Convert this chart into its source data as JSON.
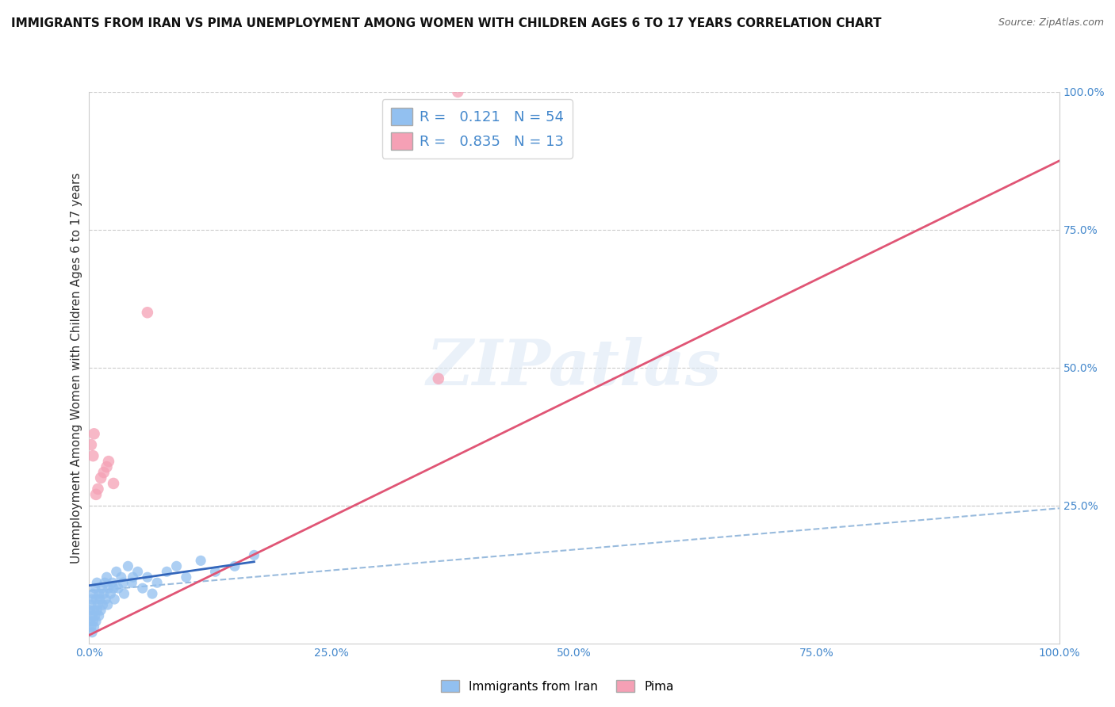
{
  "title": "IMMIGRANTS FROM IRAN VS PIMA UNEMPLOYMENT AMONG WOMEN WITH CHILDREN AGES 6 TO 17 YEARS CORRELATION CHART",
  "source": "Source: ZipAtlas.com",
  "ylabel": "Unemployment Among Women with Children Ages 6 to 17 years",
  "xlim": [
    0.0,
    1.0
  ],
  "ylim": [
    0.0,
    1.0
  ],
  "xtick_labels": [
    "0.0%",
    "25.0%",
    "50.0%",
    "75.0%",
    "100.0%"
  ],
  "xtick_vals": [
    0.0,
    0.25,
    0.5,
    0.75,
    1.0
  ],
  "ytick_labels": [
    "25.0%",
    "50.0%",
    "75.0%",
    "100.0%"
  ],
  "ytick_vals": [
    0.25,
    0.5,
    0.75,
    1.0
  ],
  "blue_scatter_x": [
    0.001,
    0.001,
    0.002,
    0.002,
    0.003,
    0.003,
    0.003,
    0.004,
    0.004,
    0.005,
    0.005,
    0.006,
    0.006,
    0.007,
    0.007,
    0.008,
    0.008,
    0.009,
    0.01,
    0.01,
    0.011,
    0.012,
    0.013,
    0.014,
    0.015,
    0.016,
    0.017,
    0.018,
    0.019,
    0.02,
    0.022,
    0.024,
    0.026,
    0.028,
    0.03,
    0.033,
    0.036,
    0.04,
    0.044,
    0.05,
    0.055,
    0.06,
    0.065,
    0.07,
    0.08,
    0.09,
    0.1,
    0.115,
    0.13,
    0.15,
    0.17,
    0.025,
    0.035,
    0.045
  ],
  "blue_scatter_y": [
    0.04,
    0.06,
    0.03,
    0.07,
    0.02,
    0.05,
    0.08,
    0.04,
    0.09,
    0.03,
    0.06,
    0.05,
    0.1,
    0.04,
    0.08,
    0.06,
    0.11,
    0.07,
    0.05,
    0.09,
    0.08,
    0.06,
    0.1,
    0.07,
    0.09,
    0.11,
    0.08,
    0.12,
    0.07,
    0.1,
    0.09,
    0.11,
    0.08,
    0.13,
    0.1,
    0.12,
    0.09,
    0.14,
    0.11,
    0.13,
    0.1,
    0.12,
    0.09,
    0.11,
    0.13,
    0.14,
    0.12,
    0.15,
    0.13,
    0.14,
    0.16,
    0.1,
    0.11,
    0.12
  ],
  "pink_scatter_x": [
    0.002,
    0.004,
    0.005,
    0.007,
    0.009,
    0.012,
    0.015,
    0.018,
    0.02,
    0.025,
    0.06,
    0.36,
    0.38
  ],
  "pink_scatter_y": [
    0.36,
    0.34,
    0.38,
    0.27,
    0.28,
    0.3,
    0.31,
    0.32,
    0.33,
    0.29,
    0.6,
    0.48,
    1.0
  ],
  "blue_solid_line_x": [
    0.0,
    0.17
  ],
  "blue_solid_line_y": [
    0.105,
    0.148
  ],
  "pink_line_x": [
    0.0,
    1.0
  ],
  "pink_line_y": [
    0.015,
    0.875
  ],
  "blue_dashed_line_x": [
    0.0,
    1.0
  ],
  "blue_dashed_line_y": [
    0.095,
    0.245
  ],
  "blue_color": "#92c0f0",
  "pink_color": "#f5a0b5",
  "blue_solid_color": "#3366bb",
  "pink_line_color": "#e05575",
  "blue_dashed_color": "#99bbdd",
  "R_blue": "0.121",
  "N_blue": "54",
  "R_pink": "0.835",
  "N_pink": "13",
  "legend_label_blue": "Immigrants from Iran",
  "legend_label_pink": "Pima",
  "watermark_text": "ZIPatlas",
  "background_color": "#ffffff",
  "grid_color": "#cccccc",
  "title_fontsize": 11,
  "label_fontsize": 11,
  "tick_fontsize": 10,
  "source_fontsize": 9
}
